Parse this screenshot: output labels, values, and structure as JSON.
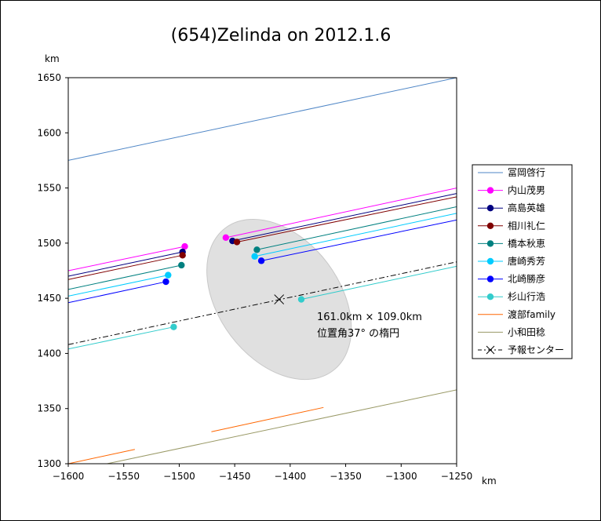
{
  "chart_data": {
    "type": "line",
    "title": "(654)Zelinda on 2012.1.6",
    "x_unit": "km",
    "y_unit": "km",
    "xlim": [
      -1600,
      -1250
    ],
    "ylim": [
      1300,
      1650
    ],
    "x_ticks": [
      "−1600",
      "−1550",
      "−1500",
      "−1450",
      "−1400",
      "−1350",
      "−1300",
      "−1250"
    ],
    "y_ticks": [
      "1300",
      "1350",
      "1400",
      "1450",
      "1500",
      "1550",
      "1600",
      "1650"
    ],
    "grid": false,
    "legend_position": "right",
    "ellipse": {
      "center": [
        -1410,
        1449
      ],
      "major_km": 161.0,
      "minor_km": 109.0,
      "position_angle_deg": 37,
      "label_line1": "161.0km × 109.0km",
      "label_line2": "位置角37° の楕円",
      "fill": "#e0e0e0"
    },
    "series": [
      {
        "name": "冨岡啓行",
        "color": "#4f86c6",
        "marker": false,
        "lines": [
          [
            [
              -1600,
              1575
            ],
            [
              -1250,
              1650
            ]
          ]
        ],
        "points": []
      },
      {
        "name": "内山茂男",
        "color": "#ff00ff",
        "marker": true,
        "lines": [
          [
            [
              -1600,
              1475
            ],
            [
              -1495,
              1497
            ]
          ],
          [
            [
              -1458,
              1505
            ],
            [
              -1250,
              1550
            ]
          ]
        ],
        "points": [
          [
            -1495,
            1497
          ],
          [
            -1458,
            1505
          ]
        ]
      },
      {
        "name": "高島英雄",
        "color": "#000080",
        "marker": true,
        "lines": [
          [
            [
              -1600,
              1470
            ],
            [
              -1497,
              1492
            ]
          ],
          [
            [
              -1452,
              1502
            ],
            [
              -1250,
              1545
            ]
          ]
        ],
        "points": [
          [
            -1497,
            1492
          ],
          [
            -1452,
            1502
          ]
        ]
      },
      {
        "name": "相川礼仁",
        "color": "#800000",
        "marker": true,
        "lines": [
          [
            [
              -1600,
              1467
            ],
            [
              -1497,
              1489
            ]
          ],
          [
            [
              -1448,
              1501
            ],
            [
              -1250,
              1542
            ]
          ]
        ],
        "points": [
          [
            -1497,
            1489
          ],
          [
            -1448,
            1501
          ]
        ]
      },
      {
        "name": "橋本秋恵",
        "color": "#008080",
        "marker": true,
        "lines": [
          [
            [
              -1600,
              1458
            ],
            [
              -1498,
              1480
            ]
          ],
          [
            [
              -1430,
              1494
            ],
            [
              -1250,
              1533
            ]
          ]
        ],
        "points": [
          [
            -1498,
            1480
          ],
          [
            -1430,
            1494
          ]
        ]
      },
      {
        "name": "唐崎秀芳",
        "color": "#00ccff",
        "marker": true,
        "lines": [
          [
            [
              -1600,
              1452
            ],
            [
              -1510,
              1471
            ]
          ],
          [
            [
              -1432,
              1488
            ],
            [
              -1250,
              1527
            ]
          ]
        ],
        "points": [
          [
            -1510,
            1471
          ],
          [
            -1432,
            1488
          ]
        ]
      },
      {
        "name": "北崎勝彦",
        "color": "#0000ff",
        "marker": true,
        "lines": [
          [
            [
              -1600,
              1446
            ],
            [
              -1512,
              1465
            ]
          ],
          [
            [
              -1426,
              1484
            ],
            [
              -1250,
              1521
            ]
          ]
        ],
        "points": [
          [
            -1512,
            1465
          ],
          [
            -1426,
            1484
          ]
        ]
      },
      {
        "name": "杉山行浩",
        "color": "#33cccc",
        "marker": true,
        "lines": [
          [
            [
              -1600,
              1404
            ],
            [
              -1505,
              1424
            ]
          ],
          [
            [
              -1390,
              1449
            ],
            [
              -1250,
              1479
            ]
          ]
        ],
        "points": [
          [
            -1505,
            1424
          ],
          [
            -1390,
            1449
          ]
        ]
      },
      {
        "name": "渡部family",
        "color": "#ff6600",
        "marker": false,
        "lines": [
          [
            [
              -1600,
              1300
            ],
            [
              -1540,
              1313
            ]
          ],
          [
            [
              -1471,
              1329
            ],
            [
              -1370,
              1351
            ]
          ]
        ],
        "points": []
      },
      {
        "name": "小和田稔",
        "color": "#999966",
        "marker": false,
        "lines": [
          [
            [
              -1565,
              1300
            ],
            [
              -1250,
              1367
            ]
          ]
        ],
        "points": []
      },
      {
        "name": "予報センター",
        "color": "#000000",
        "marker": false,
        "dashed": true,
        "lines": [
          [
            [
              -1600,
              1408
            ],
            [
              -1250,
              1483
            ]
          ]
        ],
        "points": [],
        "center_point": [
          -1410,
          1449
        ]
      }
    ]
  }
}
